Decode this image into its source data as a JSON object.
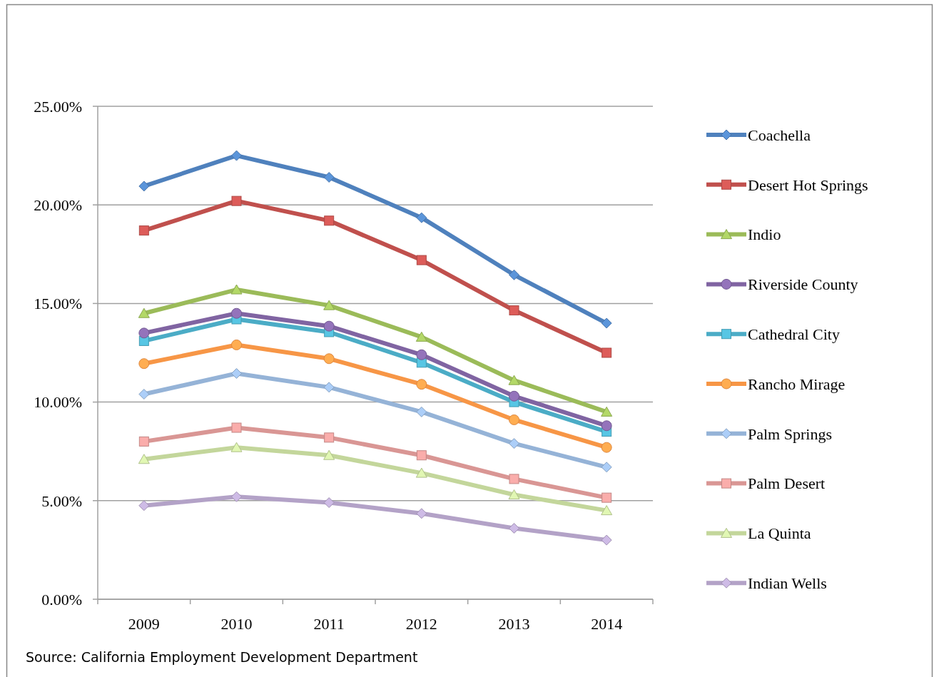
{
  "chart_data": {
    "type": "line",
    "categories": [
      "2009",
      "2010",
      "2011",
      "2012",
      "2013",
      "2014"
    ],
    "ylim": [
      0,
      25
    ],
    "yticks": [
      {
        "value": 0,
        "label": "0.00%"
      },
      {
        "value": 5,
        "label": "5.00%"
      },
      {
        "value": 10,
        "label": "10.00%"
      },
      {
        "value": 15,
        "label": "15.00%"
      },
      {
        "value": 20,
        "label": "20.00%"
      },
      {
        "value": 25,
        "label": "25.00%"
      }
    ],
    "grid": "y",
    "legend": "right",
    "line_style": "solid",
    "annotations": [
      "Source: California Employment Development Department"
    ],
    "series": [
      {
        "name": "Coachella",
        "color": "#4f81bd",
        "marker": "diamond",
        "values": [
          20.95,
          22.5,
          21.4,
          19.35,
          16.45,
          14.0
        ]
      },
      {
        "name": "Desert Hot Springs",
        "color": "#c0504d",
        "marker": "square",
        "values": [
          18.7,
          20.2,
          19.2,
          17.2,
          14.65,
          12.5
        ]
      },
      {
        "name": "Indio",
        "color": "#9bbb59",
        "marker": "triangle",
        "values": [
          14.5,
          15.7,
          14.9,
          13.3,
          11.1,
          9.5
        ]
      },
      {
        "name": "Riverside County",
        "color": "#8064a2",
        "marker": "circle",
        "values": [
          13.5,
          14.5,
          13.85,
          12.4,
          10.3,
          8.8
        ]
      },
      {
        "name": "Cathedral City",
        "color": "#4bacc6",
        "marker": "square",
        "values": [
          13.1,
          14.2,
          13.55,
          12.0,
          10.0,
          8.5
        ]
      },
      {
        "name": "Rancho Mirage",
        "color": "#f79646",
        "marker": "circle",
        "values": [
          11.95,
          12.9,
          12.2,
          10.9,
          9.1,
          7.7
        ]
      },
      {
        "name": "Palm Springs",
        "color": "#95b3d7",
        "marker": "diamond",
        "values": [
          10.4,
          11.45,
          10.75,
          9.5,
          7.9,
          6.7
        ]
      },
      {
        "name": "Palm Desert",
        "color": "#d99694",
        "marker": "square",
        "values": [
          8.0,
          8.7,
          8.2,
          7.3,
          6.1,
          5.15
        ]
      },
      {
        "name": "La Quinta",
        "color": "#c3d69b",
        "marker": "triangle",
        "values": [
          7.1,
          7.7,
          7.3,
          6.4,
          5.3,
          4.5
        ]
      },
      {
        "name": "Indian Wells",
        "color": "#b3a2c7",
        "marker": "diamond",
        "values": [
          4.75,
          5.2,
          4.9,
          4.35,
          3.6,
          3.0
        ]
      }
    ]
  }
}
